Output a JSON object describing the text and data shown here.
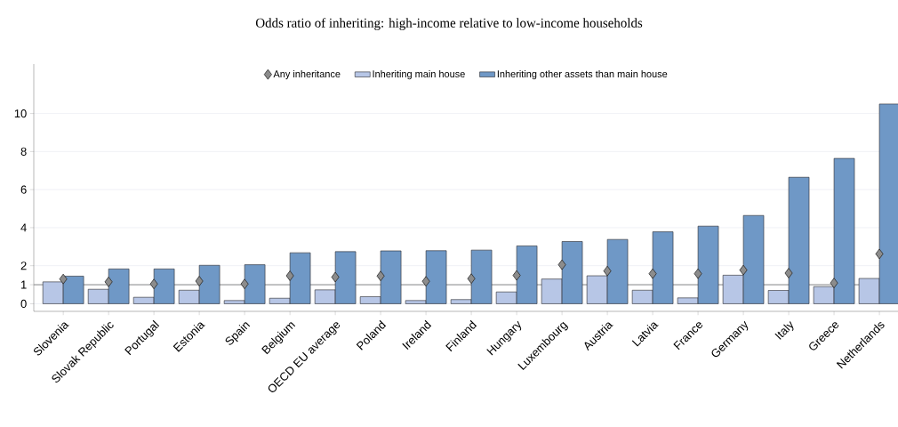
{
  "chart_data": {
    "type": "bar",
    "title": "Odds ratio of inheriting: high-income relative to low-income households",
    "categories": [
      "Slovenia",
      "Slovak Republic",
      "Portugal",
      "Estonia",
      "Spain",
      "Belgium",
      "OECD EU average",
      "Poland",
      "Ireland",
      "Finland",
      "Hungary",
      "Luxembourg",
      "Austria",
      "Latvia",
      "France",
      "Germany",
      "Italy",
      "Greece",
      "Netherlands"
    ],
    "series": [
      {
        "name": "Any inheritance",
        "type": "scatter",
        "marker": "diamond",
        "color": "#8c8c8c",
        "values": [
          1.3,
          1.15,
          1.04,
          1.19,
          1.04,
          1.47,
          1.4,
          1.46,
          1.18,
          1.32,
          1.49,
          2.05,
          1.72,
          1.58,
          1.58,
          1.77,
          1.61,
          1.09,
          2.62
        ]
      },
      {
        "name": "Inheriting main house",
        "type": "bar",
        "color": "#b7c6e6",
        "values": [
          1.15,
          0.76,
          0.34,
          0.71,
          0.17,
          0.29,
          0.73,
          0.37,
          0.17,
          0.22,
          0.62,
          1.3,
          1.47,
          0.71,
          0.31,
          1.5,
          0.7,
          0.9,
          1.33
        ]
      },
      {
        "name": "Inheriting other assets than main house",
        "type": "bar",
        "color": "#6f98c6",
        "values": [
          1.45,
          1.83,
          1.83,
          2.02,
          2.05,
          2.68,
          2.74,
          2.78,
          2.79,
          2.82,
          3.04,
          3.27,
          3.38,
          3.78,
          4.08,
          4.64,
          6.65,
          7.64,
          10.5
        ]
      }
    ],
    "ylim": [
      -0.4,
      12.6
    ],
    "yticks": [
      0,
      1,
      2,
      4,
      6,
      8,
      10
    ],
    "grid": "y",
    "legend": "top",
    "ref_lines": [
      {
        "axis": "y",
        "value": 1,
        "color": "#8a8a8a"
      }
    ]
  }
}
